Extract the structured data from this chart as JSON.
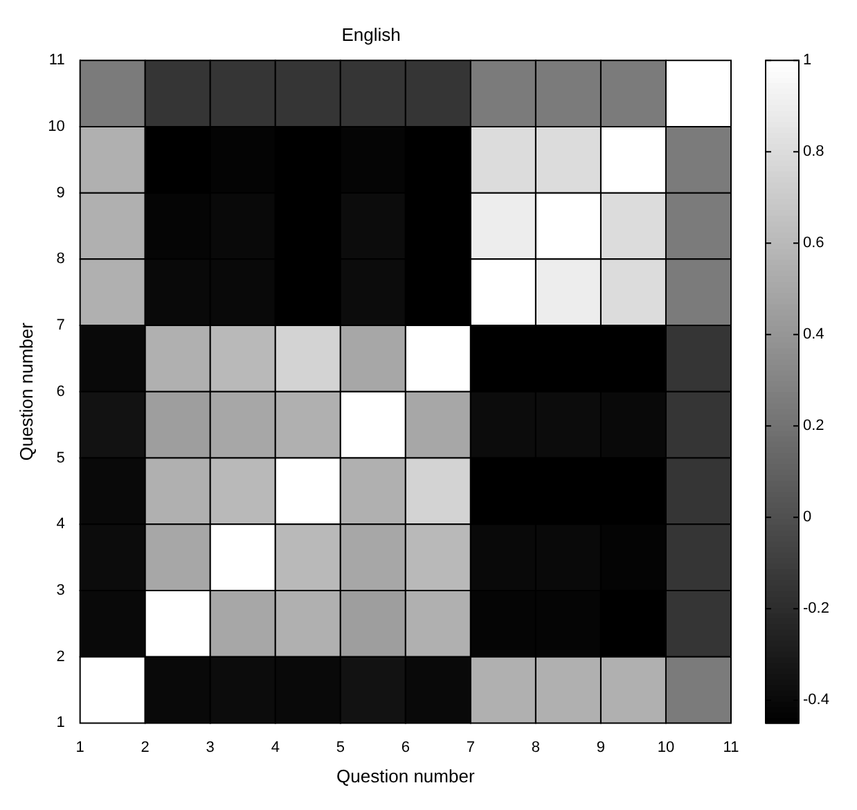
{
  "chart_data": {
    "type": "heatmap",
    "title": "English",
    "xlabel": "Question number",
    "ylabel": "Question number",
    "xlim": [
      1,
      11
    ],
    "xticks": [
      1,
      2,
      3,
      4,
      5,
      6,
      7,
      8,
      9,
      10,
      11
    ],
    "ylim": [
      1,
      11
    ],
    "yticks": [
      1,
      2,
      3,
      4,
      5,
      6,
      7,
      8,
      9,
      10,
      11
    ],
    "clim": [
      -0.45,
      1
    ],
    "cticks": [
      -0.4,
      -0.2,
      0,
      0.2,
      0.4,
      0.6,
      0.8,
      1
    ],
    "cells": [
      [
        0.25,
        -0.15,
        -0.15,
        -0.15,
        -0.15,
        -0.15,
        0.25,
        0.25,
        0.25,
        1
      ],
      [
        0.55,
        -0.45,
        -0.43,
        -0.45,
        -0.42,
        -0.45,
        0.8,
        0.8,
        1,
        0.25
      ],
      [
        0.55,
        -0.42,
        -0.4,
        -0.45,
        -0.38,
        -0.45,
        0.9,
        1,
        0.8,
        0.25
      ],
      [
        0.55,
        -0.4,
        -0.4,
        -0.45,
        -0.38,
        -0.45,
        1,
        0.9,
        0.8,
        0.25
      ],
      [
        -0.4,
        0.55,
        0.6,
        0.75,
        0.5,
        1,
        -0.45,
        -0.45,
        -0.45,
        -0.15
      ],
      [
        -0.35,
        0.45,
        0.5,
        0.55,
        1,
        0.5,
        -0.38,
        -0.38,
        -0.4,
        -0.15
      ],
      [
        -0.4,
        0.55,
        0.6,
        1,
        0.55,
        0.75,
        -0.45,
        -0.45,
        -0.45,
        -0.15
      ],
      [
        -0.38,
        0.5,
        1,
        0.6,
        0.5,
        0.6,
        -0.4,
        -0.4,
        -0.43,
        -0.15
      ],
      [
        -0.4,
        1,
        0.5,
        0.55,
        0.45,
        0.55,
        -0.42,
        -0.42,
        -0.45,
        -0.15
      ],
      [
        1,
        -0.4,
        -0.38,
        -0.4,
        -0.35,
        -0.4,
        0.55,
        0.55,
        0.55,
        0.25
      ]
    ]
  }
}
